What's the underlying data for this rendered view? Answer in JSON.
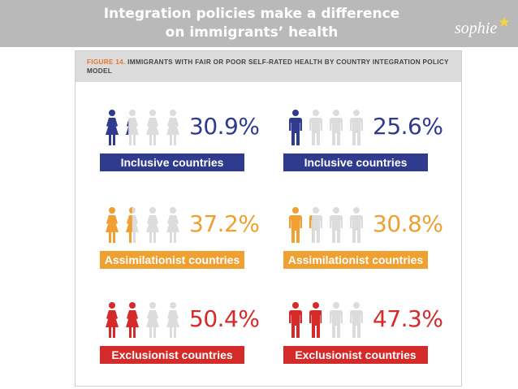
{
  "slide": {
    "title_line1": "Integration policies make a difference",
    "title_line2": "on immigrants’ health",
    "brand": "sophie"
  },
  "figure": {
    "label_number": "FIGURE 14.",
    "label_text": "IMMIGRANTS WITH FAIR OR POOR SELF-RATED HEALTH BY COUNTRY INTEGRATION POLICY MODEL"
  },
  "colors": {
    "inclusive": "#2e3b8e",
    "assimilationist": "#f0a030",
    "exclusionist": "#d42a2a",
    "inactive": "#dcdcdc"
  },
  "chart_data": {
    "type": "pictogram",
    "unit": "%",
    "series": [
      {
        "name": "women",
        "icon": "female-person-icon",
        "categories": [
          "Inclusive countries",
          "Assimilationist countries",
          "Exclusionist countries"
        ],
        "values": [
          30.9,
          37.2,
          50.4
        ]
      },
      {
        "name": "men",
        "icon": "male-person-icon",
        "categories": [
          "Inclusive countries",
          "Assimilationist countries",
          "Exclusionist countries"
        ],
        "values": [
          25.6,
          30.8,
          47.3
        ]
      }
    ]
  },
  "panels": [
    {
      "pct": "30.9%",
      "label": "Inclusive countries",
      "color_key": "inclusive"
    },
    {
      "pct": "25.6%",
      "label": "Inclusive countries",
      "color_key": "inclusive"
    },
    {
      "pct": "37.2%",
      "label": "Assimilationist countries",
      "color_key": "assimilationist"
    },
    {
      "pct": "30.8%",
      "label": "Assimilationist countries",
      "color_key": "assimilationist"
    },
    {
      "pct": "50.4%",
      "label": "Exclusionist countries",
      "color_key": "exclusionist"
    },
    {
      "pct": "47.3%",
      "label": "Exclusionist countries",
      "color_key": "exclusionist"
    }
  ]
}
